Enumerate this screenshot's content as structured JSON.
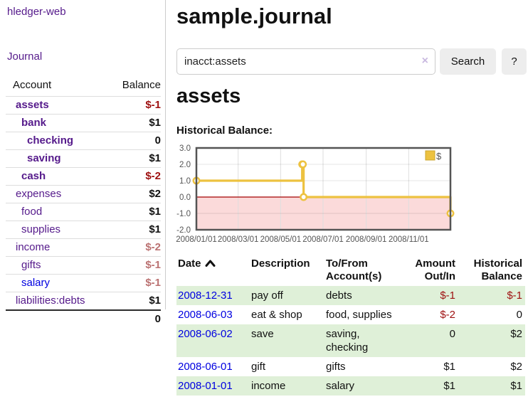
{
  "app": {
    "brand": "hledger-web",
    "nav_journal": "Journal"
  },
  "sidebar": {
    "columns": [
      "Account",
      "Balance"
    ],
    "accounts": [
      {
        "name": "assets",
        "depth": 1,
        "bold": true,
        "balance": "$-1",
        "balance_style": "neg-strong",
        "link_color": "purple"
      },
      {
        "name": "bank",
        "depth": 2,
        "bold": true,
        "balance": "$1",
        "balance_style": "pos",
        "link_color": "purple"
      },
      {
        "name": "checking",
        "depth": 3,
        "bold": true,
        "balance": "0",
        "balance_style": "pos",
        "link_color": "purple"
      },
      {
        "name": "saving",
        "depth": 3,
        "bold": true,
        "balance": "$1",
        "balance_style": "pos",
        "link_color": "purple"
      },
      {
        "name": "cash",
        "depth": 2,
        "bold": true,
        "balance": "$-2",
        "balance_style": "neg-strong",
        "link_color": "purple"
      },
      {
        "name": "expenses",
        "depth": 1,
        "bold": false,
        "balance": "$2",
        "balance_style": "pos",
        "link_color": "purple"
      },
      {
        "name": "food",
        "depth": 2,
        "bold": false,
        "balance": "$1",
        "balance_style": "pos",
        "link_color": "purple"
      },
      {
        "name": "supplies",
        "depth": 2,
        "bold": false,
        "balance": "$1",
        "balance_style": "pos",
        "link_color": "purple"
      },
      {
        "name": "income",
        "depth": 1,
        "bold": false,
        "balance": "$-2",
        "balance_style": "neg-muted",
        "link_color": "purple"
      },
      {
        "name": "gifts",
        "depth": 2,
        "bold": false,
        "balance": "$-1",
        "balance_style": "neg-muted",
        "link_color": "purple"
      },
      {
        "name": "salary",
        "depth": 2,
        "bold": false,
        "balance": "$-1",
        "balance_style": "neg-muted",
        "link_color": "blue"
      },
      {
        "name": "liabilities:debts",
        "depth": 1,
        "bold": false,
        "balance": "$1",
        "balance_style": "pos",
        "link_color": "purple"
      }
    ],
    "total": "0"
  },
  "header": {
    "title": "sample.journal"
  },
  "search": {
    "value": "inacct:assets",
    "clear_icon": "×",
    "button": "Search",
    "help_button": "?"
  },
  "account_page": {
    "title": "assets",
    "chart_label": "Historical Balance:"
  },
  "chart_data": {
    "type": "line",
    "step": true,
    "title": "Historical Balance:",
    "series": [
      {
        "name": "$",
        "color": "#edc240",
        "points": [
          [
            "2008-01-01",
            1
          ],
          [
            "2008-06-01",
            2
          ],
          [
            "2008-06-02",
            2
          ],
          [
            "2008-06-03",
            0
          ],
          [
            "2008-12-31",
            -1
          ]
        ]
      }
    ],
    "x_range": [
      "2008-01-01",
      "2008-12-31"
    ],
    "ylim": [
      -2,
      3
    ],
    "yticks": [
      {
        "value": 3,
        "label": "3.0"
      },
      {
        "value": 2,
        "label": "2.0"
      },
      {
        "value": 1,
        "label": "1.0"
      },
      {
        "value": 0,
        "label": "0.0"
      },
      {
        "value": -1,
        "label": "-1.0"
      },
      {
        "value": -2,
        "label": "-2.0"
      }
    ],
    "xticks": [
      {
        "date": "2008-01-01",
        "label": "2008/01/01"
      },
      {
        "date": "2008-03-01",
        "label": "2008/03/01"
      },
      {
        "date": "2008-05-01",
        "label": "2008/05/01"
      },
      {
        "date": "2008-07-01",
        "label": "2008/07/01"
      },
      {
        "date": "2008-09-01",
        "label": "2008/09/01"
      },
      {
        "date": "2008-11-01",
        "label": "2008/11/01"
      }
    ],
    "legend": [
      "$"
    ],
    "legend_position": "top-right",
    "grid": true,
    "negative_fill": "#fbdada",
    "zero_line_color": "#a40000",
    "border_color": "#545454"
  },
  "register": {
    "columns": [
      {
        "lines": [
          "Date"
        ],
        "align": "left",
        "sort_icon": "chevron-up"
      },
      {
        "lines": [
          "Description"
        ],
        "align": "left"
      },
      {
        "lines": [
          "To/From",
          "Account(s)"
        ],
        "align": "left"
      },
      {
        "lines": [
          "Amount",
          "Out/In"
        ],
        "align": "right"
      },
      {
        "lines": [
          "Historical",
          "Balance"
        ],
        "align": "right"
      }
    ],
    "rows": [
      {
        "date": "2008-12-31",
        "description": "pay off",
        "accounts": "debts",
        "amount": "$-1",
        "amount_neg": true,
        "balance": "$-1",
        "balance_neg": true
      },
      {
        "date": "2008-06-03",
        "description": "eat & shop",
        "accounts": "food, supplies",
        "amount": "$-2",
        "amount_neg": true,
        "balance": "0",
        "balance_neg": false
      },
      {
        "date": "2008-06-02",
        "description": "save",
        "accounts": "saving, checking",
        "amount": "0",
        "amount_neg": false,
        "balance": "$2",
        "balance_neg": false
      },
      {
        "date": "2008-06-01",
        "description": "gift",
        "accounts": "gifts",
        "amount": "$1",
        "amount_neg": false,
        "balance": "$2",
        "balance_neg": false
      },
      {
        "date": "2008-01-01",
        "description": "income",
        "accounts": "salary",
        "amount": "$1",
        "amount_neg": false,
        "balance": "$1",
        "balance_neg": false
      }
    ]
  }
}
